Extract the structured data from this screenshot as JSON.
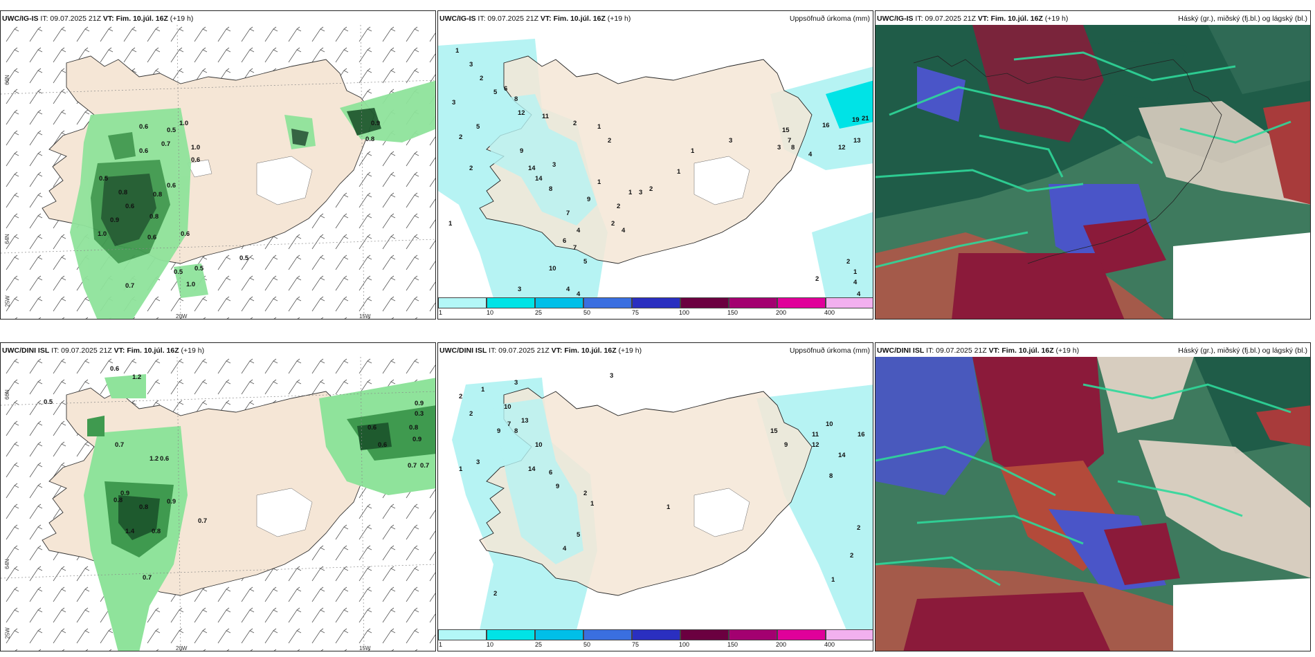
{
  "panels": [
    {
      "model": "UWC/IG-IS",
      "it": "IT: 09.07.2025 21Z",
      "vt_label": "VT:",
      "vt": "Fim. 10.júl. 16Z",
      "lead": "(+19 h)",
      "right": ""
    },
    {
      "model": "UWC/IG-IS",
      "it": "IT: 09.07.2025 21Z",
      "vt_label": "VT:",
      "vt": "Fim. 10.júl. 16Z",
      "lead": "(+19 h)",
      "right": "Uppsöfnuð úrkoma (mm)"
    },
    {
      "model": "UWC/IG-IS",
      "it": "IT: 09.07.2025 21Z",
      "vt_label": "VT:",
      "vt": "Fim. 10.júl. 16Z",
      "lead": "(+19 h)",
      "right": "Háský (gr.), miðský (fj.bl.) og lágský (bl.)"
    },
    {
      "model": "UWC/DINI ISL",
      "it": "IT: 09.07.2025 21Z",
      "vt_label": "VT:",
      "vt": "Fim. 10.júl. 16Z",
      "lead": "(+19 h)",
      "right": ""
    },
    {
      "model": "UWC/DINI ISL",
      "it": "IT: 09.07.2025 21Z",
      "vt_label": "VT:",
      "vt": "Fim. 10.júl. 16Z",
      "lead": "(+19 h)",
      "right": "Uppsöfnuð úrkoma (mm)"
    },
    {
      "model": "UWC/DINI ISL",
      "it": "IT: 09.07.2025 21Z",
      "vt_label": "VT:",
      "vt": "Fim. 10.júl. 16Z",
      "lead": "(+19 h)",
      "right": "Háský (gr.), miðský (fj.bl.) og lágský (bl.)"
    }
  ],
  "coords": {
    "n66": "66N",
    "n64": "64N",
    "w25": "25W",
    "w20": "20W",
    "w15": "15W"
  },
  "precip_scale": {
    "labels": [
      "1",
      "10",
      "25",
      "50",
      "75",
      "100",
      "150",
      "200",
      "400"
    ],
    "colors": [
      "#b3f7f7",
      "#00e3e6",
      "#00bfe8",
      "#3a6fe0",
      "#2a2fc0",
      "#6b0040",
      "#a30070",
      "#e0009a",
      "#f2b0ef"
    ]
  },
  "colors": {
    "land": "#f5e6d6",
    "precip_light": "#b6f3f3",
    "shower_green": "#7dd88a",
    "shower_dark": "#1e5a2e",
    "cloud_green": "#1f6b52",
    "cloud_red": "#8b1a3a",
    "cloud_blue": "#4a55c8"
  },
  "shower_values_top": [
    "0.6",
    "0.5",
    "1.0",
    "0.7",
    "1.0",
    "0.6",
    "0.6",
    "0.5",
    "0.8",
    "0.9",
    "0.6",
    "0.8",
    "0.6",
    "0.6",
    "1.0",
    "0.8",
    "0.6",
    "0.5",
    "0.5",
    "0.7",
    "1.0",
    "0.5",
    "0.9",
    "0.8"
  ],
  "shower_values_bottom": [
    "0.6",
    "1.2",
    "0.5",
    "0.7",
    "1.2",
    "0.6",
    "0.8",
    "0.9",
    "0.9",
    "0.8",
    "0.8",
    "0.7",
    "1.4",
    "0.7",
    "0.9",
    "0.6",
    "0.6",
    "0.3",
    "0.8",
    "0.9",
    "0.7",
    "0.7"
  ],
  "precip_values_top": [
    "1",
    "3",
    "2",
    "3",
    "5",
    "6",
    "8",
    "12",
    "11",
    "9",
    "14",
    "14",
    "8",
    "3",
    "2",
    "5",
    "7",
    "2",
    "4",
    "1",
    "3",
    "2",
    "1",
    "2",
    "9",
    "2",
    "1",
    "1",
    "2",
    "4",
    "6",
    "7",
    "5",
    "10",
    "4",
    "4",
    "3",
    "2",
    "1",
    "1",
    "3",
    "7",
    "15",
    "16",
    "19",
    "21",
    "13",
    "12",
    "3",
    "8",
    "4",
    "2",
    "1",
    "2",
    "4",
    "4"
  ],
  "precip_values_bottom": [
    "1",
    "3",
    "2",
    "2",
    "10",
    "13",
    "9",
    "7",
    "8",
    "3",
    "1",
    "14",
    "6",
    "10",
    "9",
    "2",
    "1",
    "5",
    "4",
    "1",
    "3",
    "15",
    "11",
    "10",
    "16",
    "14",
    "12",
    "8",
    "9",
    "2",
    "1",
    "2",
    "2"
  ]
}
